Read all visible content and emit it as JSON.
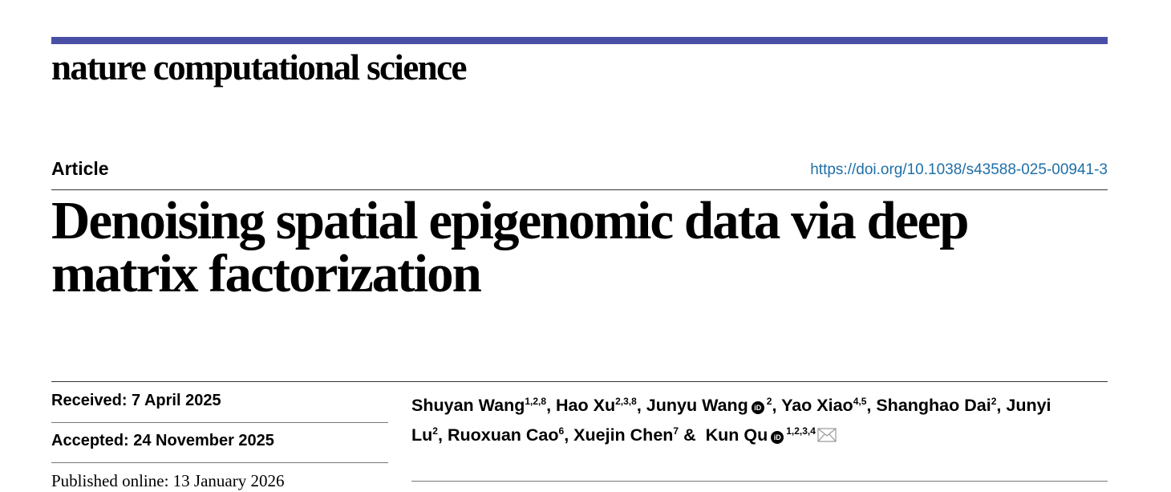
{
  "header": {
    "journal": "nature computational science"
  },
  "article": {
    "type": "Article",
    "doi": "https://doi.org/10.1038/s43588-025-00941-3",
    "title": "Denoising spatial epigenomic data via deep matrix factorization",
    "dates": [
      "Received: 7 April 2025",
      "Accepted: 24 November 2025",
      "Published online: 13 January 2026"
    ],
    "authors": [
      {
        "name": "Shuyan Wang",
        "affiliations": "1,2,8",
        "separator": ","
      },
      {
        "name": "Hao Xu",
        "affiliations": "2,3,8",
        "separator": ","
      },
      {
        "name": "Junyu Wang",
        "orcid": true,
        "affiliations": "2",
        "separator": ","
      },
      {
        "name": "Yao Xiao",
        "affiliations": "4,5",
        "separator": ","
      },
      {
        "name": "Shanghao Dai",
        "affiliations": "2",
        "separator": ","
      },
      {
        "name": "Junyi Lu",
        "affiliations": "2",
        "separator": ","
      },
      {
        "name": "Ruoxuan Cao",
        "affiliations": "6",
        "separator": ","
      },
      {
        "name": "Xuejin Chen",
        "affiliations": "7",
        "separator": "&"
      },
      {
        "name": "Kun Qu",
        "orcid": true,
        "affiliations": "1,2,3,4",
        "corresponding": true
      }
    ]
  }
}
